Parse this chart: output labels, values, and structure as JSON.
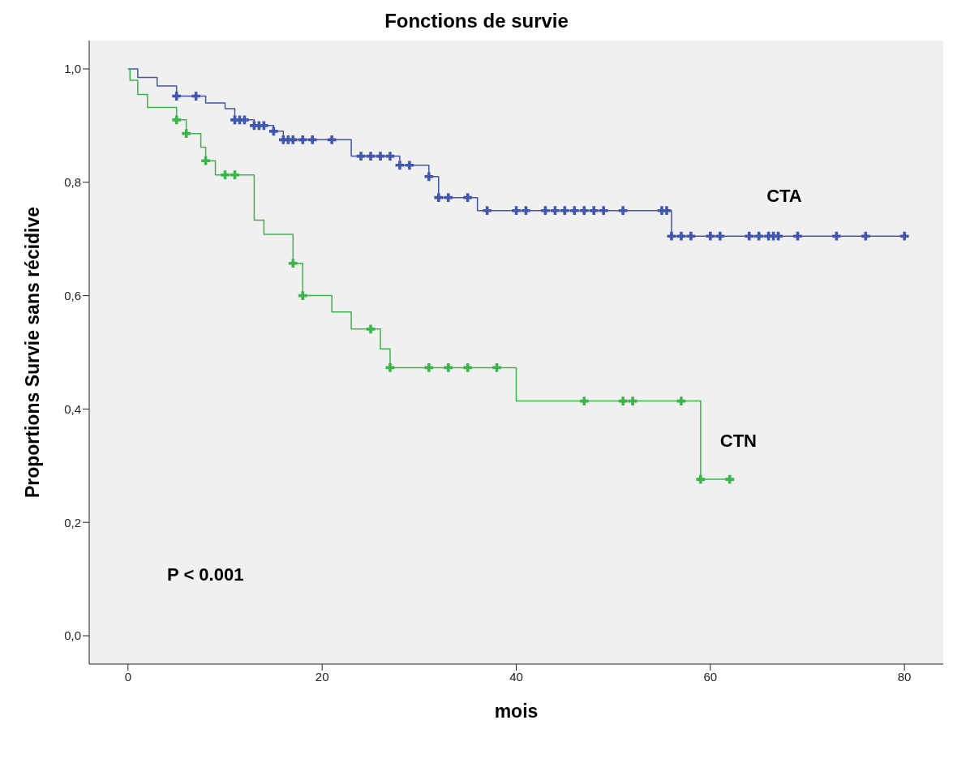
{
  "chart_data": {
    "type": "step",
    "title": "Fonctions de survie",
    "xlabel": "mois",
    "ylabel": "Proportions Survie sans récidive",
    "annotations": [
      "P < 0.001"
    ],
    "xlim": [
      -4,
      84
    ],
    "xticks": [
      0,
      20,
      40,
      60,
      80
    ],
    "ylim": [
      -0.05,
      1.05
    ],
    "yticks": [
      {
        "value": 0,
        "label": "0,0"
      },
      {
        "value": 0.2,
        "label": "0,2"
      },
      {
        "value": 0.4,
        "label": "0,4"
      },
      {
        "value": 0.6,
        "label": "0,6"
      },
      {
        "value": 0.8,
        "label": "0,8"
      },
      {
        "value": 1,
        "label": "1,0"
      }
    ],
    "grid": false,
    "legend": false,
    "series": [
      {
        "name": "CTA",
        "color": "#4356ad",
        "marker": "none",
        "x": [
          0,
          1,
          3,
          5,
          8,
          10,
          11,
          13,
          15,
          16,
          23,
          28,
          31,
          32,
          36,
          56,
          80
        ],
        "values": [
          1,
          0.985,
          0.97,
          0.952,
          0.94,
          0.93,
          0.91,
          0.9,
          0.89,
          0.875,
          0.846,
          0.83,
          0.81,
          0.773,
          0.75,
          0.705,
          0.705
        ]
      },
      {
        "name": "CTN",
        "color": "#3cb44b",
        "marker": "none",
        "x": [
          0,
          0.2,
          1,
          2,
          5,
          6,
          7.5,
          8,
          9,
          13,
          14,
          17,
          18,
          21,
          23,
          26,
          27,
          40,
          59,
          62
        ],
        "values": [
          1,
          0.98,
          0.955,
          0.932,
          0.91,
          0.886,
          0.862,
          0.838,
          0.813,
          0.733,
          0.708,
          0.657,
          0.6,
          0.571,
          0.541,
          0.506,
          0.473,
          0.414,
          0.276,
          0.276
        ]
      },
      {
        "type": "scatter",
        "color": "#4356ad",
        "marker": "cross",
        "x": [
          5,
          7,
          11,
          11.5,
          12,
          13,
          13.5,
          14,
          15,
          16,
          16.5,
          17,
          18,
          19,
          21,
          24,
          25,
          26,
          27,
          28,
          29,
          31,
          32,
          33,
          35,
          37,
          40,
          41,
          43,
          44,
          45,
          46,
          47,
          48,
          49,
          51,
          55,
          55.5,
          56,
          57,
          58,
          60,
          61,
          64,
          65,
          66,
          66.5,
          67,
          69,
          73,
          76,
          80
        ],
        "values": [
          0.952,
          0.952,
          0.91,
          0.91,
          0.91,
          0.9,
          0.9,
          0.9,
          0.89,
          0.875,
          0.875,
          0.875,
          0.875,
          0.875,
          0.875,
          0.846,
          0.846,
          0.846,
          0.846,
          0.83,
          0.83,
          0.81,
          0.773,
          0.773,
          0.773,
          0.75,
          0.75,
          0.75,
          0.75,
          0.75,
          0.75,
          0.75,
          0.75,
          0.75,
          0.75,
          0.75,
          0.75,
          0.75,
          0.705,
          0.705,
          0.705,
          0.705,
          0.705,
          0.705,
          0.705,
          0.705,
          0.705,
          0.705,
          0.705,
          0.705,
          0.705,
          0.705
        ]
      },
      {
        "type": "scatter",
        "color": "#3cb44b",
        "marker": "cross",
        "x": [
          5,
          6,
          8,
          10,
          11,
          17,
          18,
          25,
          27,
          31,
          33,
          35,
          38,
          47,
          51,
          52,
          57,
          59,
          62
        ],
        "values": [
          0.91,
          0.886,
          0.838,
          0.813,
          0.813,
          0.657,
          0.6,
          0.541,
          0.473,
          0.473,
          0.473,
          0.473,
          0.473,
          0.414,
          0.414,
          0.414,
          0.414,
          0.276,
          0.276
        ]
      }
    ]
  }
}
